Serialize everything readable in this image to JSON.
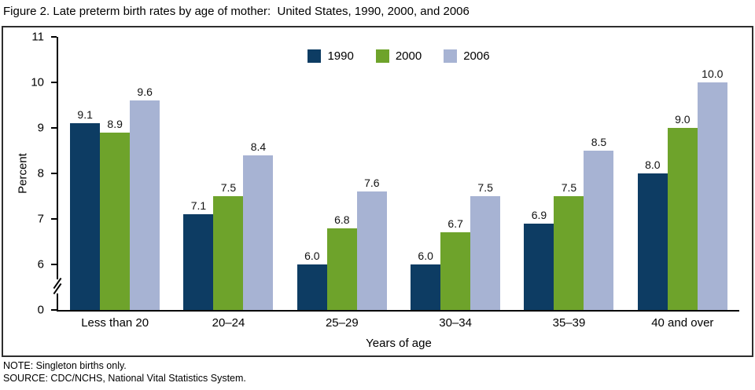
{
  "chart_data": {
    "type": "bar",
    "title": "Figure 2. Late preterm birth rates by age of mother:  United States, 1990, 2000, and 2006",
    "categories": [
      "Less than 20",
      "20–24",
      "25–29",
      "30–34",
      "35–39",
      "40 and over"
    ],
    "series": [
      {
        "name": "1990",
        "color": "#0d3c63",
        "values": [
          9.1,
          7.1,
          6.0,
          6.0,
          6.9,
          8.0
        ]
      },
      {
        "name": "2000",
        "color": "#6ea32b",
        "values": [
          8.9,
          7.5,
          6.8,
          6.7,
          7.5,
          9.0
        ]
      },
      {
        "name": "2006",
        "color": "#a7b3d3",
        "values": [
          9.6,
          8.4,
          7.6,
          7.5,
          8.5,
          10.0
        ]
      }
    ],
    "xlabel": "Years of age",
    "ylabel": "Percent",
    "y_ticks": [
      0,
      6,
      7,
      8,
      9,
      10,
      11
    ],
    "ylim": [
      0,
      11
    ],
    "axis_break": true,
    "grid": false,
    "legend_position": "top-center"
  },
  "notes": {
    "note": "NOTE: Singleton births only.",
    "source": "SOURCE: CDC/NCHS, National Vital Statistics System."
  }
}
